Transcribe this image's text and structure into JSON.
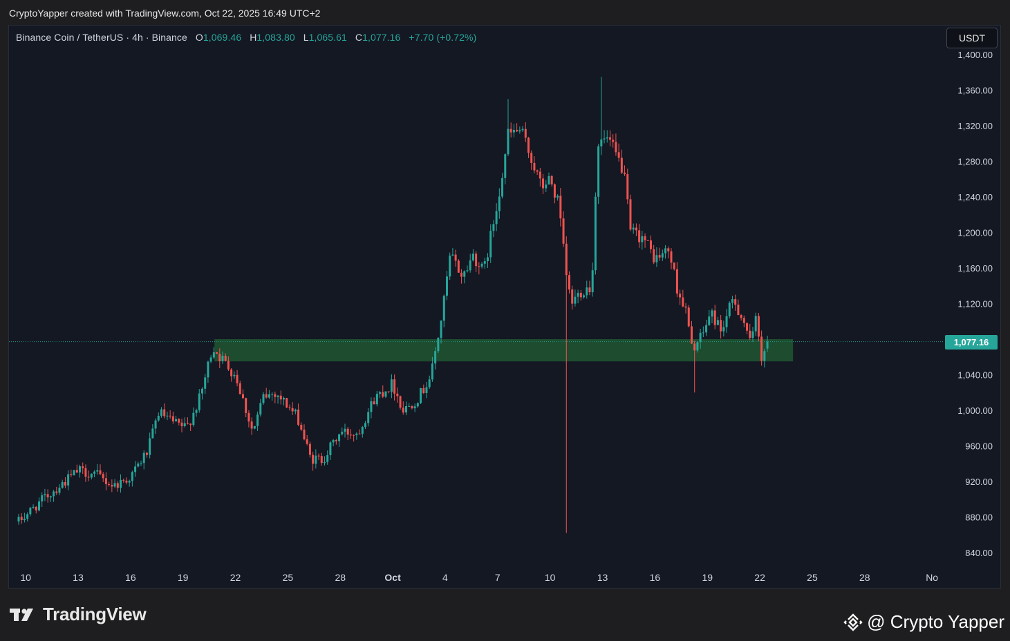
{
  "header": {
    "credit": "CryptoYapper created with TradingView.com, Oct 22, 2025 16:49 UTC+2"
  },
  "legend": {
    "symbol": "Binance Coin / TetherUS · 4h · Binance",
    "o_label": "O",
    "o_value": "1,069.46",
    "h_label": "H",
    "h_value": "1,083.80",
    "l_label": "L",
    "l_value": "1,065.61",
    "c_label": "C",
    "c_value": "1,077.16",
    "change": "+7.70 (+0.72%)"
  },
  "currency_button": "USDT",
  "last_price_badge": "1,077.16",
  "brand": {
    "name": "TradingView"
  },
  "watermark": {
    "text": "@ Crypto Yapper"
  },
  "colors": {
    "background": "#141823",
    "up": "#26a69a",
    "down": "#ef5350",
    "zone": "#1e5631",
    "text": "#d1d4dc",
    "price_line": "#26a69a"
  },
  "icons": [
    "tradingview-logo-icon",
    "binance-logo-icon"
  ],
  "chart_data": {
    "type": "candlestick",
    "title": "",
    "xlabel": "",
    "ylabel": "",
    "ylim": [
      820,
      1400
    ],
    "y_ticks": [
      840,
      880,
      920,
      960,
      1000,
      1040,
      1080,
      1120,
      1160,
      1200,
      1240,
      1280,
      1320,
      1360,
      1400
    ],
    "y_tick_labels": [
      "840.00",
      "880.00",
      "920.00",
      "960.00",
      "1,000.00",
      "1,040.00",
      "1,077.16",
      "1,120.00",
      "1,160.00",
      "1,200.00",
      "1,240.00",
      "1,280.00",
      "1,320.00",
      "1,360.00",
      "1,400.00"
    ],
    "x_ticks": [
      {
        "day": 10,
        "label": "10"
      },
      {
        "day": 13,
        "label": "13"
      },
      {
        "day": 16,
        "label": "16"
      },
      {
        "day": 19,
        "label": "19"
      },
      {
        "day": 22,
        "label": "22"
      },
      {
        "day": 25,
        "label": "25"
      },
      {
        "day": 28,
        "label": "28"
      },
      {
        "day": 31,
        "label": "Oct"
      },
      {
        "day": 34,
        "label": "4"
      },
      {
        "day": 37,
        "label": "7"
      },
      {
        "day": 40,
        "label": "10"
      },
      {
        "day": 43,
        "label": "13"
      },
      {
        "day": 46,
        "label": "16"
      },
      {
        "day": 49,
        "label": "19"
      },
      {
        "day": 52,
        "label": "22"
      },
      {
        "day": 55,
        "label": "25"
      },
      {
        "day": 58,
        "label": "28"
      },
      {
        "day": 61.85,
        "label": "No"
      }
    ],
    "x_range": [
      9.6,
      62.2
    ],
    "interval_hours": 4,
    "start_day": 9.6,
    "last_price": 1077.16,
    "zone": {
      "low": 1055,
      "high": 1080,
      "from_day": 20.8,
      "to_day": 53.9
    },
    "anchors": [
      {
        "day": 9.6,
        "close": 875
      },
      {
        "day": 11.0,
        "close": 900
      },
      {
        "day": 13.0,
        "close": 932
      },
      {
        "day": 14.0,
        "close": 928
      },
      {
        "day": 15.0,
        "close": 915
      },
      {
        "day": 16.0,
        "close": 925
      },
      {
        "day": 17.0,
        "close": 955
      },
      {
        "day": 17.6,
        "close": 998
      },
      {
        "day": 18.5,
        "close": 985
      },
      {
        "day": 19.2,
        "close": 980
      },
      {
        "day": 20.0,
        "close": 1015
      },
      {
        "day": 20.7,
        "close": 1072
      },
      {
        "day": 21.2,
        "close": 1058
      },
      {
        "day": 22.0,
        "close": 1040
      },
      {
        "day": 23.0,
        "close": 975
      },
      {
        "day": 23.6,
        "close": 1015
      },
      {
        "day": 24.3,
        "close": 1020
      },
      {
        "day": 25.0,
        "close": 1005
      },
      {
        "day": 25.6,
        "close": 990
      },
      {
        "day": 26.3,
        "close": 945
      },
      {
        "day": 27.0,
        "close": 945
      },
      {
        "day": 28.0,
        "close": 975
      },
      {
        "day": 29.0,
        "close": 975
      },
      {
        "day": 30.0,
        "close": 1015
      },
      {
        "day": 31.0,
        "close": 1030
      },
      {
        "day": 31.6,
        "close": 1000
      },
      {
        "day": 32.5,
        "close": 1015
      },
      {
        "day": 33.2,
        "close": 1040
      },
      {
        "day": 33.8,
        "close": 1105
      },
      {
        "day": 34.3,
        "close": 1175
      },
      {
        "day": 35.0,
        "close": 1150
      },
      {
        "day": 35.6,
        "close": 1175
      },
      {
        "day": 36.2,
        "close": 1155
      },
      {
        "day": 36.8,
        "close": 1215
      },
      {
        "day": 37.3,
        "close": 1270
      },
      {
        "day": 37.6,
        "close": 1310
      },
      {
        "day": 38.3,
        "close": 1315
      },
      {
        "day": 39.0,
        "close": 1280
      },
      {
        "day": 39.5,
        "close": 1250
      },
      {
        "day": 40.0,
        "close": 1260
      },
      {
        "day": 40.5,
        "close": 1230
      },
      {
        "day": 40.9,
        "close": 1155
      },
      {
        "day": 41.2,
        "close": 1120
      },
      {
        "day": 41.8,
        "close": 1135
      },
      {
        "day": 42.4,
        "close": 1140
      },
      {
        "day": 42.7,
        "close": 1300
      },
      {
        "day": 43.3,
        "close": 1305
      },
      {
        "day": 43.8,
        "close": 1285
      },
      {
        "day": 44.2,
        "close": 1270
      },
      {
        "day": 44.6,
        "close": 1200
      },
      {
        "day": 45.3,
        "close": 1195
      },
      {
        "day": 46.0,
        "close": 1170
      },
      {
        "day": 46.8,
        "close": 1180
      },
      {
        "day": 47.3,
        "close": 1135
      },
      {
        "day": 47.8,
        "close": 1110
      },
      {
        "day": 48.1,
        "close": 1070
      },
      {
        "day": 48.6,
        "close": 1080
      },
      {
        "day": 49.2,
        "close": 1110
      },
      {
        "day": 49.8,
        "close": 1090
      },
      {
        "day": 50.5,
        "close": 1125
      },
      {
        "day": 51.2,
        "close": 1095
      },
      {
        "day": 51.5,
        "close": 1070
      },
      {
        "day": 51.8,
        "close": 1110
      },
      {
        "day": 52.1,
        "close": 1060
      },
      {
        "day": 52.5,
        "close": 1077.16
      }
    ],
    "wick_events": [
      {
        "day": 40.88,
        "low": 862
      },
      {
        "day": 42.9,
        "high": 1375
      },
      {
        "day": 37.55,
        "high": 1350
      },
      {
        "day": 48.25,
        "low": 1020
      },
      {
        "day": 26.5,
        "low": 932
      },
      {
        "day": 40.6,
        "high": 1250
      }
    ]
  }
}
